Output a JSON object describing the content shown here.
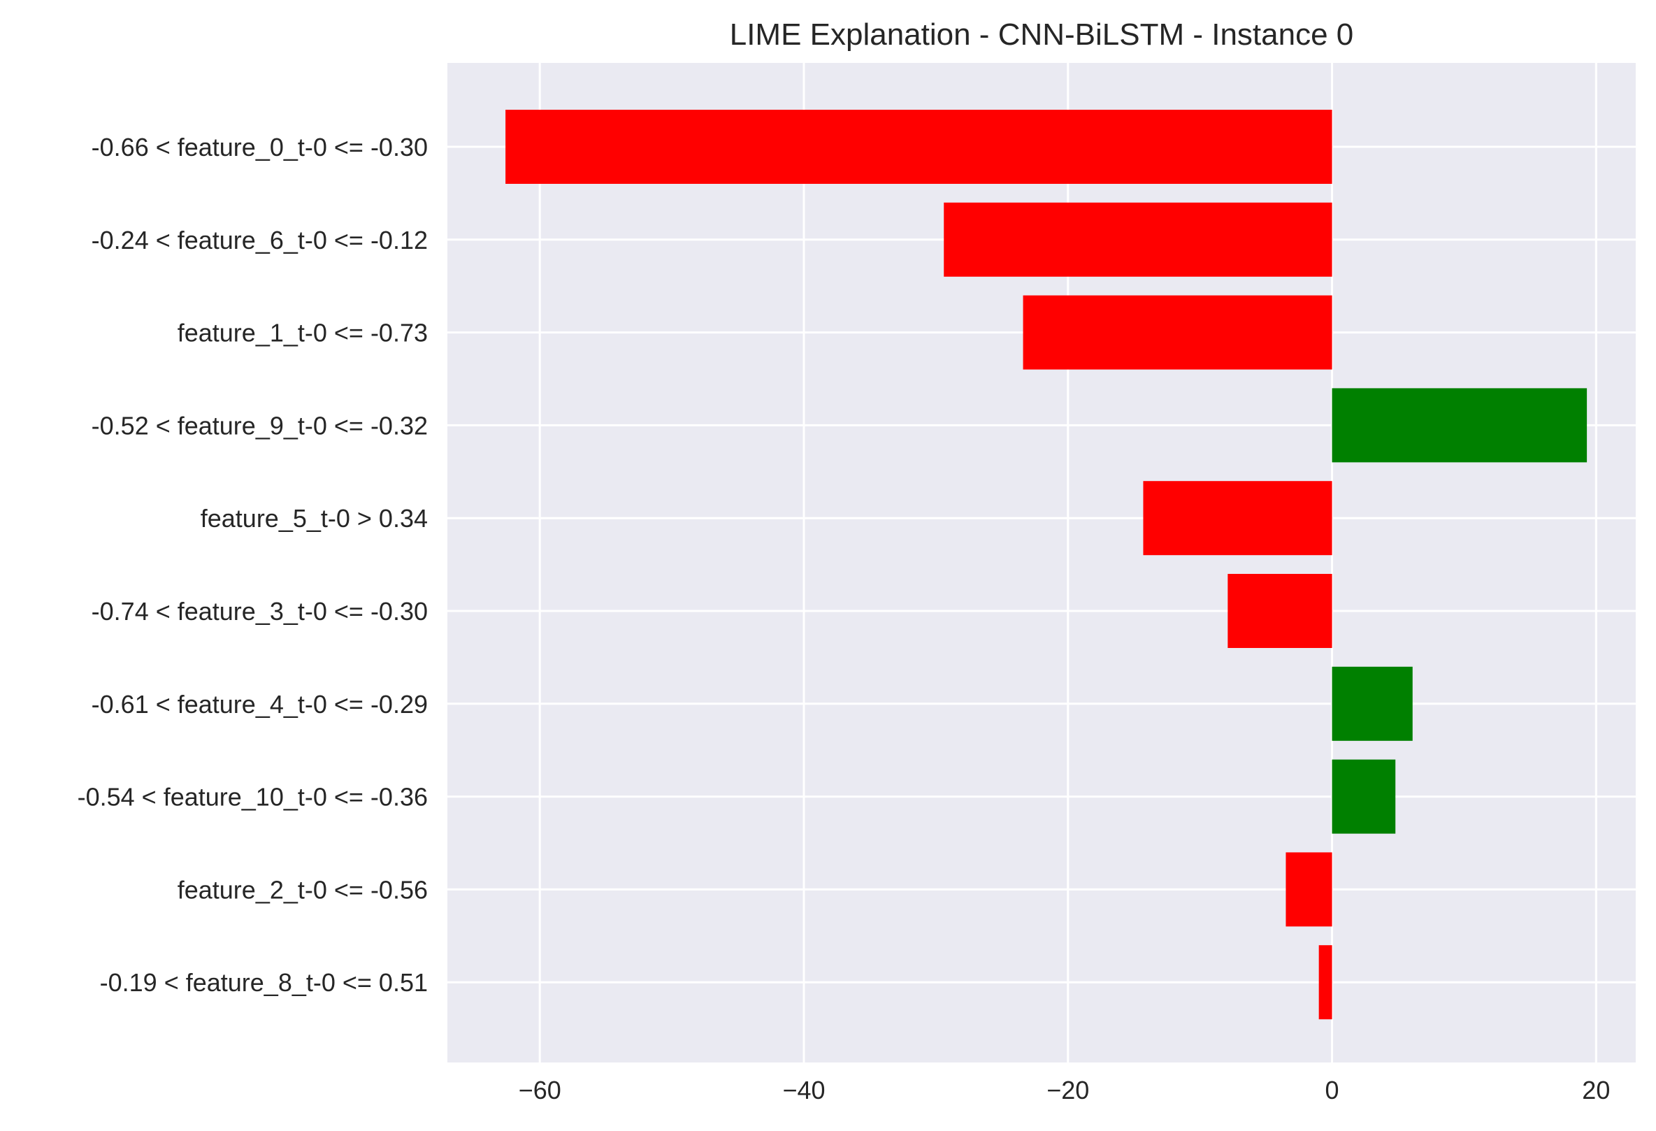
{
  "chart_data": {
    "type": "bar",
    "orientation": "horizontal",
    "title": "LIME Explanation - CNN-BiLSTM - Instance 0",
    "xlabel": "",
    "ylabel": "",
    "xlim": [
      -67,
      23
    ],
    "xticks": [
      -60,
      -40,
      -20,
      0,
      20
    ],
    "xtick_labels": [
      "−60",
      "−40",
      "−20",
      "0",
      "20"
    ],
    "grid": true,
    "legend": false,
    "colors": {
      "negative": "#ff0000",
      "positive": "#008000",
      "background": "#eaeaf2",
      "grid": "#ffffff",
      "text": "#262626"
    },
    "categories": [
      "-0.66 < feature_0_t-0 <= -0.30",
      "-0.24 < feature_6_t-0 <= -0.12",
      "feature_1_t-0 <= -0.73",
      "-0.52 < feature_9_t-0 <= -0.32",
      "feature_5_t-0 > 0.34",
      "-0.74 < feature_3_t-0 <= -0.30",
      "-0.61 < feature_4_t-0 <= -0.29",
      "-0.54 < feature_10_t-0 <= -0.36",
      "feature_2_t-0 <= -0.56",
      "-0.19 < feature_8_t-0 <= 0.51"
    ],
    "values": [
      -62.6,
      -29.4,
      -23.4,
      19.3,
      -14.3,
      -7.9,
      6.1,
      4.8,
      -3.5,
      -1.0
    ]
  }
}
